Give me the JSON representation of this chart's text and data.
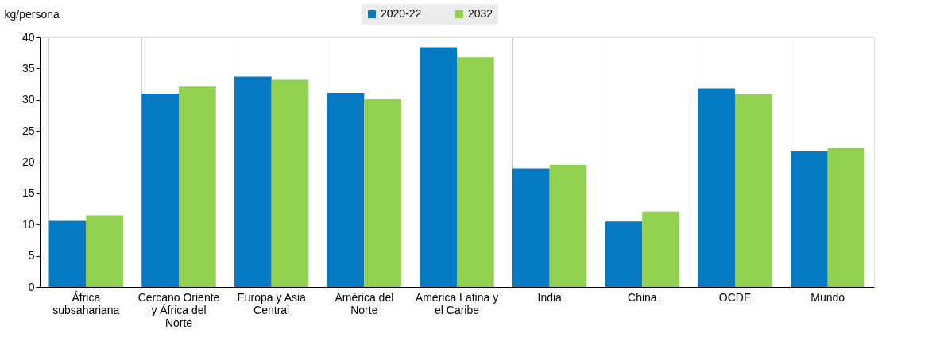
{
  "chart_data": {
    "type": "bar",
    "ylabel": "kg/persona",
    "categories": [
      "África subsahariana",
      "Cercano Oriente y África del Norte",
      "Europa y Asia Central",
      "América del Norte",
      "América Latina y el Caribe",
      "India",
      "China",
      "OCDE",
      "Mundo"
    ],
    "series": [
      {
        "name": "2020-22",
        "color": "#0579c2",
        "values": [
          10.6,
          31.0,
          33.7,
          31.1,
          38.4,
          19.0,
          10.5,
          31.8,
          21.7
        ]
      },
      {
        "name": "2032",
        "color": "#92d050",
        "values": [
          11.5,
          32.1,
          33.2,
          30.1,
          36.8,
          19.6,
          12.1,
          30.9,
          22.3
        ]
      }
    ],
    "ylim": [
      0,
      40
    ],
    "yticks": [
      0,
      5,
      10,
      15,
      20,
      25,
      30,
      35,
      40
    ],
    "grid": "x",
    "legend": "top"
  }
}
